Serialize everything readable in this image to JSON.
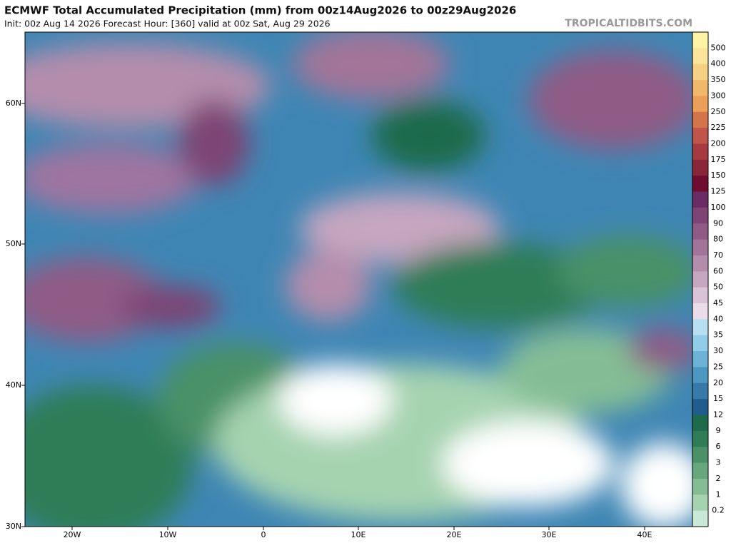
{
  "header": {
    "title": "ECMWF Total Accumulated Precipitation (mm) from 00z14Aug2026 to 00z29Aug2026",
    "subtitle": "Init: 00z Aug 14 2026   Forecast Hour: [360]   valid at 00z Sat, Aug 29 2026",
    "site": "TROPICALTIDBITS.COM"
  },
  "map": {
    "lat_labels": [
      "60N",
      "50N",
      "40N",
      "30N"
    ],
    "lon_labels": [
      "20W",
      "10W",
      "0",
      "10E",
      "20E",
      "30E",
      "40E"
    ]
  },
  "colorbar": {
    "labels": [
      "500",
      "400",
      "350",
      "300",
      "250",
      "225",
      "200",
      "175",
      "150",
      "125",
      "100",
      "90",
      "80",
      "70",
      "60",
      "50",
      "45",
      "40",
      "35",
      "30",
      "25",
      "20",
      "15",
      "12",
      "9",
      "6",
      "3",
      "2",
      "1",
      "0.2"
    ],
    "colors": [
      "#fff3a6",
      "#fbe59a",
      "#f6d083",
      "#f1b86c",
      "#eb9f57",
      "#d4744a",
      "#bf5448",
      "#a63b3f",
      "#8a2638",
      "#6e0d30",
      "#6a2c62",
      "#7d4474",
      "#8f5b86",
      "#a27499",
      "#b48dac",
      "#c6a6c0",
      "#dac3d6",
      "#ebdcea",
      "#b6e0f2",
      "#90cde8",
      "#6bb4d6",
      "#4c98c1",
      "#357aa9",
      "#205c8d",
      "#1d6b4b",
      "#2f7d56",
      "#4a9168",
      "#66a77d",
      "#84bd95",
      "#a5d3b0",
      "#c8ead4"
    ]
  }
}
